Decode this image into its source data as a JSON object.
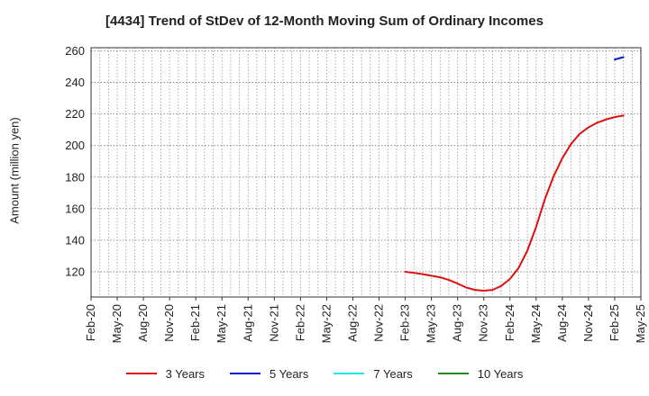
{
  "chart_data": {
    "type": "line",
    "title": "[4434]  Trend of StDev of 12-Month Moving Sum of Ordinary Incomes",
    "xlabel": "",
    "ylabel": "Amount (million yen)",
    "ylim": [
      104,
      262
    ],
    "yticks": [
      120,
      140,
      160,
      180,
      200,
      220,
      240,
      260
    ],
    "xtick_labels": [
      "Feb-20",
      "May-20",
      "Aug-20",
      "Nov-20",
      "Feb-21",
      "May-21",
      "Aug-21",
      "Nov-21",
      "Feb-22",
      "May-22",
      "Aug-22",
      "Nov-22",
      "Feb-23",
      "May-23",
      "Aug-23",
      "Nov-23",
      "Feb-24",
      "May-24",
      "Aug-24",
      "Nov-24",
      "Feb-25",
      "May-25"
    ],
    "x_months": [
      "2020-02",
      "2020-03",
      "2020-04",
      "2020-05",
      "2020-06",
      "2020-07",
      "2020-08",
      "2020-09",
      "2020-10",
      "2020-11",
      "2020-12",
      "2021-01",
      "2021-02",
      "2021-03",
      "2021-04",
      "2021-05",
      "2021-06",
      "2021-07",
      "2021-08",
      "2021-09",
      "2021-10",
      "2021-11",
      "2021-12",
      "2022-01",
      "2022-02",
      "2022-03",
      "2022-04",
      "2022-05",
      "2022-06",
      "2022-07",
      "2022-08",
      "2022-09",
      "2022-10",
      "2022-11",
      "2022-12",
      "2023-01",
      "2023-02",
      "2023-03",
      "2023-04",
      "2023-05",
      "2023-06",
      "2023-07",
      "2023-08",
      "2023-09",
      "2023-10",
      "2023-11",
      "2023-12",
      "2024-01",
      "2024-02",
      "2024-03",
      "2024-04",
      "2024-05",
      "2024-06",
      "2024-07",
      "2024-08",
      "2024-09",
      "2024-10",
      "2024-11",
      "2024-12",
      "2025-01",
      "2025-02",
      "2025-03",
      "2025-04",
      "2025-05"
    ],
    "grid": true,
    "legend_position": "bottom",
    "series": [
      {
        "name": "3 Years",
        "color": "#dd1111",
        "points": [
          [
            "2023-02",
            120
          ],
          [
            "2023-03",
            119.3
          ],
          [
            "2023-04",
            118.5
          ],
          [
            "2023-05",
            117.5
          ],
          [
            "2023-06",
            116.5
          ],
          [
            "2023-07",
            114.8
          ],
          [
            "2023-08",
            112.5
          ],
          [
            "2023-09",
            110
          ],
          [
            "2023-10",
            108.5
          ],
          [
            "2023-11",
            108
          ],
          [
            "2023-12",
            108.5
          ],
          [
            "2024-01",
            111
          ],
          [
            "2024-02",
            115.5
          ],
          [
            "2024-03",
            122.5
          ],
          [
            "2024-04",
            133.5
          ],
          [
            "2024-05",
            148.5
          ],
          [
            "2024-06",
            166
          ],
          [
            "2024-07",
            180.5
          ],
          [
            "2024-08",
            192
          ],
          [
            "2024-09",
            201
          ],
          [
            "2024-10",
            207.5
          ],
          [
            "2024-11",
            211.5
          ],
          [
            "2024-12",
            214.5
          ],
          [
            "2025-01",
            216.5
          ],
          [
            "2025-02",
            218
          ],
          [
            "2025-03",
            219
          ]
        ]
      },
      {
        "name": "5 Years",
        "color": "#0a1ecf",
        "points": [
          [
            "2025-02",
            254.5
          ],
          [
            "2025-03",
            256
          ]
        ]
      },
      {
        "name": "7 Years",
        "color": "#22e5e5",
        "points": []
      },
      {
        "name": "10 Years",
        "color": "#228b22",
        "points": []
      }
    ]
  }
}
